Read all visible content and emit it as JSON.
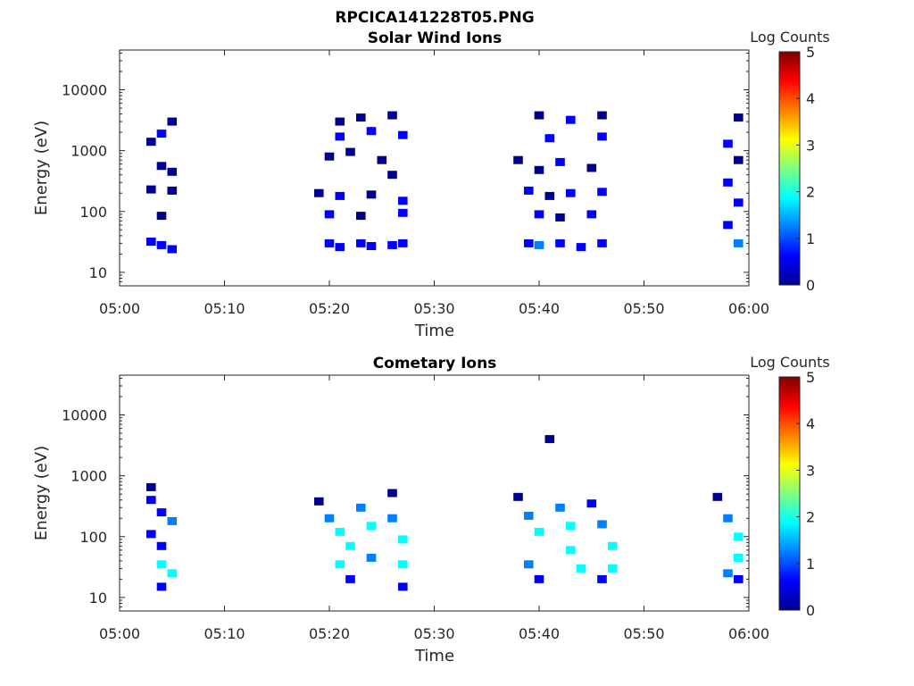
{
  "figure_title": "RPCICA141228T05.PNG",
  "colormap": [
    "#00008f",
    "#0000ff",
    "#0080ff",
    "#00ffff",
    "#80ff80",
    "#ffff00",
    "#ff8000",
    "#ff0000",
    "#800000"
  ],
  "chart_data": [
    {
      "type": "heatmap",
      "title": "Solar Wind Ions",
      "xlabel": "Time",
      "ylabel": "Energy (eV)",
      "x_ticks": [
        "05:00",
        "05:10",
        "05:20",
        "05:30",
        "05:40",
        "05:50",
        "06:00"
      ],
      "xlim": [
        "05:00",
        "06:00"
      ],
      "y_scale": "log",
      "ylim": [
        6,
        45000
      ],
      "y_ticks": [
        "10",
        "100",
        "1000",
        "10000"
      ],
      "colorbar": {
        "label": "Log Counts",
        "range": [
          0,
          5
        ],
        "ticks": [
          "0",
          "1",
          "2",
          "3",
          "4",
          "5"
        ]
      },
      "cells": [
        {
          "t": "05:03",
          "e": 1400,
          "v": 0.3
        },
        {
          "t": "05:04",
          "e": 1900,
          "v": 0.8
        },
        {
          "t": "05:05",
          "e": 3000,
          "v": 0.2
        },
        {
          "t": "05:04",
          "e": 560,
          "v": 0.2
        },
        {
          "t": "05:05",
          "e": 450,
          "v": 0.3
        },
        {
          "t": "05:05",
          "e": 220,
          "v": 0.3
        },
        {
          "t": "05:03",
          "e": 230,
          "v": 0.3
        },
        {
          "t": "05:04",
          "e": 85,
          "v": 0.3
        },
        {
          "t": "05:03",
          "e": 32,
          "v": 0.4
        },
        {
          "t": "05:04",
          "e": 28,
          "v": 0.5
        },
        {
          "t": "05:05",
          "e": 24,
          "v": 0.4
        },
        {
          "t": "05:21",
          "e": 3000,
          "v": 0.3
        },
        {
          "t": "05:21",
          "e": 1700,
          "v": 0.9
        },
        {
          "t": "05:23",
          "e": 3500,
          "v": 0.2
        },
        {
          "t": "05:24",
          "e": 2100,
          "v": 0.4
        },
        {
          "t": "05:26",
          "e": 3800,
          "v": 0.3
        },
        {
          "t": "05:27",
          "e": 1800,
          "v": 0.9
        },
        {
          "t": "05:20",
          "e": 800,
          "v": 0.2
        },
        {
          "t": "05:22",
          "e": 950,
          "v": 0.3
        },
        {
          "t": "05:25",
          "e": 700,
          "v": 0.3
        },
        {
          "t": "05:26",
          "e": 400,
          "v": 0.2
        },
        {
          "t": "05:19",
          "e": 200,
          "v": 0.3
        },
        {
          "t": "05:21",
          "e": 180,
          "v": 0.4
        },
        {
          "t": "05:24",
          "e": 190,
          "v": 0.3
        },
        {
          "t": "05:27",
          "e": 150,
          "v": 0.4
        },
        {
          "t": "05:20",
          "e": 90,
          "v": 0.4
        },
        {
          "t": "05:23",
          "e": 85,
          "v": 0.3
        },
        {
          "t": "05:27",
          "e": 95,
          "v": 0.5
        },
        {
          "t": "05:20",
          "e": 30,
          "v": 0.6
        },
        {
          "t": "05:21",
          "e": 26,
          "v": 0.9
        },
        {
          "t": "05:23",
          "e": 30,
          "v": 0.6
        },
        {
          "t": "05:24",
          "e": 27,
          "v": 0.5
        },
        {
          "t": "05:26",
          "e": 28,
          "v": 0.5
        },
        {
          "t": "05:27",
          "e": 30,
          "v": 0.7
        },
        {
          "t": "05:40",
          "e": 3800,
          "v": 0.3
        },
        {
          "t": "05:41",
          "e": 1600,
          "v": 0.8
        },
        {
          "t": "05:43",
          "e": 3200,
          "v": 0.4
        },
        {
          "t": "05:46",
          "e": 3800,
          "v": 0.3
        },
        {
          "t": "05:46",
          "e": 1700,
          "v": 0.9
        },
        {
          "t": "05:38",
          "e": 700,
          "v": 0.3
        },
        {
          "t": "05:40",
          "e": 480,
          "v": 0.3
        },
        {
          "t": "05:42",
          "e": 650,
          "v": 0.4
        },
        {
          "t": "05:45",
          "e": 520,
          "v": 0.3
        },
        {
          "t": "05:39",
          "e": 220,
          "v": 0.4
        },
        {
          "t": "05:41",
          "e": 180,
          "v": 0.3
        },
        {
          "t": "05:43",
          "e": 200,
          "v": 0.4
        },
        {
          "t": "05:46",
          "e": 210,
          "v": 0.4
        },
        {
          "t": "05:40",
          "e": 90,
          "v": 0.5
        },
        {
          "t": "05:42",
          "e": 80,
          "v": 0.3
        },
        {
          "t": "05:45",
          "e": 90,
          "v": 0.4
        },
        {
          "t": "05:39",
          "e": 30,
          "v": 0.6
        },
        {
          "t": "05:40",
          "e": 28,
          "v": 1.0
        },
        {
          "t": "05:42",
          "e": 30,
          "v": 0.5
        },
        {
          "t": "05:44",
          "e": 26,
          "v": 0.6
        },
        {
          "t": "05:46",
          "e": 30,
          "v": 0.5
        },
        {
          "t": "05:59",
          "e": 3500,
          "v": 0.3
        },
        {
          "t": "05:58",
          "e": 1300,
          "v": 0.4
        },
        {
          "t": "05:59",
          "e": 700,
          "v": 0.3
        },
        {
          "t": "05:58",
          "e": 300,
          "v": 0.4
        },
        {
          "t": "05:59",
          "e": 140,
          "v": 0.6
        },
        {
          "t": "05:58",
          "e": 60,
          "v": 0.9
        },
        {
          "t": "05:59",
          "e": 30,
          "v": 1.4
        }
      ]
    },
    {
      "type": "heatmap",
      "title": "Cometary Ions",
      "xlabel": "Time",
      "ylabel": "Energy (eV)",
      "x_ticks": [
        "05:00",
        "05:10",
        "05:20",
        "05:30",
        "05:40",
        "05:50",
        "06:00"
      ],
      "xlim": [
        "05:00",
        "06:00"
      ],
      "y_scale": "log",
      "ylim": [
        6,
        45000
      ],
      "y_ticks": [
        "10",
        "100",
        "1000",
        "10000"
      ],
      "colorbar": {
        "label": "Log Counts",
        "range": [
          0,
          5
        ],
        "ticks": [
          "0",
          "1",
          "2",
          "3",
          "4",
          "5"
        ]
      },
      "cells": [
        {
          "t": "05:03",
          "e": 650,
          "v": 0.2
        },
        {
          "t": "05:03",
          "e": 400,
          "v": 0.4
        },
        {
          "t": "05:04",
          "e": 250,
          "v": 0.8
        },
        {
          "t": "05:05",
          "e": 180,
          "v": 1.0
        },
        {
          "t": "05:03",
          "e": 110,
          "v": 0.6
        },
        {
          "t": "05:04",
          "e": 70,
          "v": 0.9
        },
        {
          "t": "05:04",
          "e": 35,
          "v": 1.7
        },
        {
          "t": "05:05",
          "e": 25,
          "v": 1.9
        },
        {
          "t": "05:04",
          "e": 15,
          "v": 0.7
        },
        {
          "t": "05:19",
          "e": 380,
          "v": 0.3
        },
        {
          "t": "05:20",
          "e": 200,
          "v": 1.4
        },
        {
          "t": "05:21",
          "e": 120,
          "v": 1.9
        },
        {
          "t": "05:22",
          "e": 70,
          "v": 1.6
        },
        {
          "t": "05:21",
          "e": 35,
          "v": 2.0
        },
        {
          "t": "05:22",
          "e": 20,
          "v": 0.6
        },
        {
          "t": "05:23",
          "e": 300,
          "v": 1.0
        },
        {
          "t": "05:24",
          "e": 150,
          "v": 1.6
        },
        {
          "t": "05:24",
          "e": 45,
          "v": 1.3
        },
        {
          "t": "05:26",
          "e": 520,
          "v": 0.3
        },
        {
          "t": "05:26",
          "e": 200,
          "v": 1.2
        },
        {
          "t": "05:27",
          "e": 90,
          "v": 1.9
        },
        {
          "t": "05:27",
          "e": 35,
          "v": 2.0
        },
        {
          "t": "05:27",
          "e": 15,
          "v": 0.5
        },
        {
          "t": "05:41",
          "e": 4000,
          "v": 0.3
        },
        {
          "t": "05:38",
          "e": 450,
          "v": 0.2
        },
        {
          "t": "05:39",
          "e": 220,
          "v": 1.0
        },
        {
          "t": "05:40",
          "e": 120,
          "v": 1.7
        },
        {
          "t": "05:39",
          "e": 35,
          "v": 1.5
        },
        {
          "t": "05:40",
          "e": 20,
          "v": 0.5
        },
        {
          "t": "05:42",
          "e": 300,
          "v": 1.2
        },
        {
          "t": "05:43",
          "e": 150,
          "v": 2.0
        },
        {
          "t": "05:43",
          "e": 60,
          "v": 1.6
        },
        {
          "t": "05:44",
          "e": 30,
          "v": 1.9
        },
        {
          "t": "05:45",
          "e": 350,
          "v": 0.6
        },
        {
          "t": "05:46",
          "e": 160,
          "v": 1.5
        },
        {
          "t": "05:47",
          "e": 70,
          "v": 1.8
        },
        {
          "t": "05:47",
          "e": 30,
          "v": 2.0
        },
        {
          "t": "05:46",
          "e": 20,
          "v": 0.4
        },
        {
          "t": "05:57",
          "e": 450,
          "v": 0.3
        },
        {
          "t": "05:58",
          "e": 200,
          "v": 1.2
        },
        {
          "t": "05:59",
          "e": 100,
          "v": 1.8
        },
        {
          "t": "05:59",
          "e": 45,
          "v": 1.9
        },
        {
          "t": "05:58",
          "e": 25,
          "v": 1.0
        },
        {
          "t": "05:59",
          "e": 20,
          "v": 0.5
        }
      ]
    }
  ]
}
